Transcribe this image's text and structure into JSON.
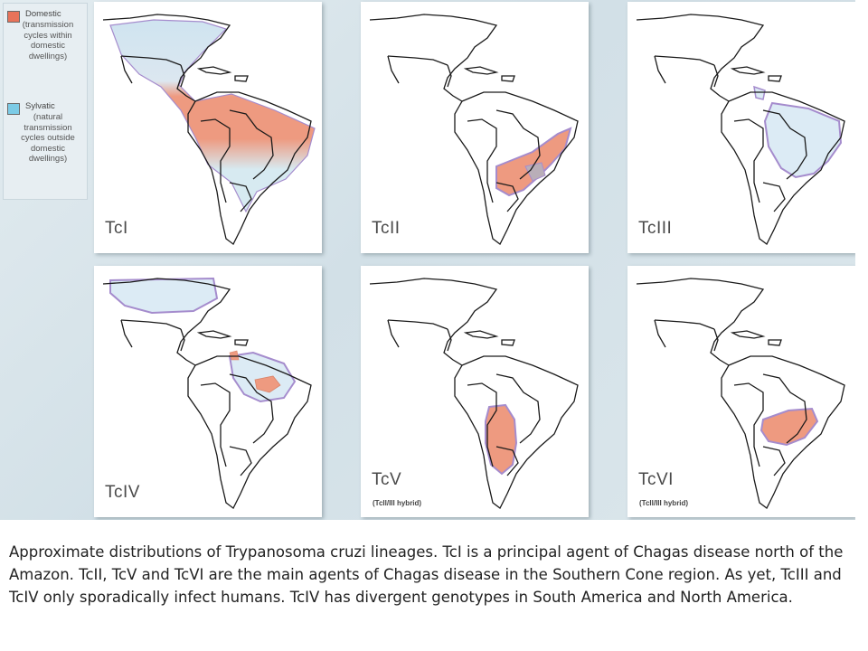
{
  "legend": {
    "domestic": {
      "title": "Domestic",
      "description": "(transmission cycles within domestic dwellings)",
      "color": "#e8735a"
    },
    "sylvatic": {
      "title": "Sylvatic",
      "description": "(natural transmission cycles outside domestic dwellings)",
      "color": "#7ccbe6"
    }
  },
  "panels": [
    {
      "id": "tci",
      "label": "TcI",
      "sublabel": ""
    },
    {
      "id": "tcii",
      "label": "TcII",
      "sublabel": ""
    },
    {
      "id": "tciii",
      "label": "TcIII",
      "sublabel": ""
    },
    {
      "id": "tciv",
      "label": "TcIV",
      "sublabel": ""
    },
    {
      "id": "tcv",
      "label": "TcV",
      "sublabel": "(TcII/III hybrid)"
    },
    {
      "id": "tcvi",
      "label": "TcVI",
      "sublabel": "(TcII/III hybrid)"
    }
  ],
  "colors": {
    "domestic_fill": "#ee9a80",
    "sylvatic_fill": "#dcebf5",
    "range_outline": "#a58ccd",
    "map_line": "#1a1a1a",
    "background": "#d8e4ea"
  },
  "caption": "Approximate distributions of Trypanosoma cruzi lineages. TcI is a principal agent of Chagas disease north of the Amazon. TcII, TcV and TcVI are the main agents of Chagas disease in the Southern Cone region. As yet, TcIII and TcIV only sporadically infect humans. TcIV has divergent genotypes in South America and North America."
}
